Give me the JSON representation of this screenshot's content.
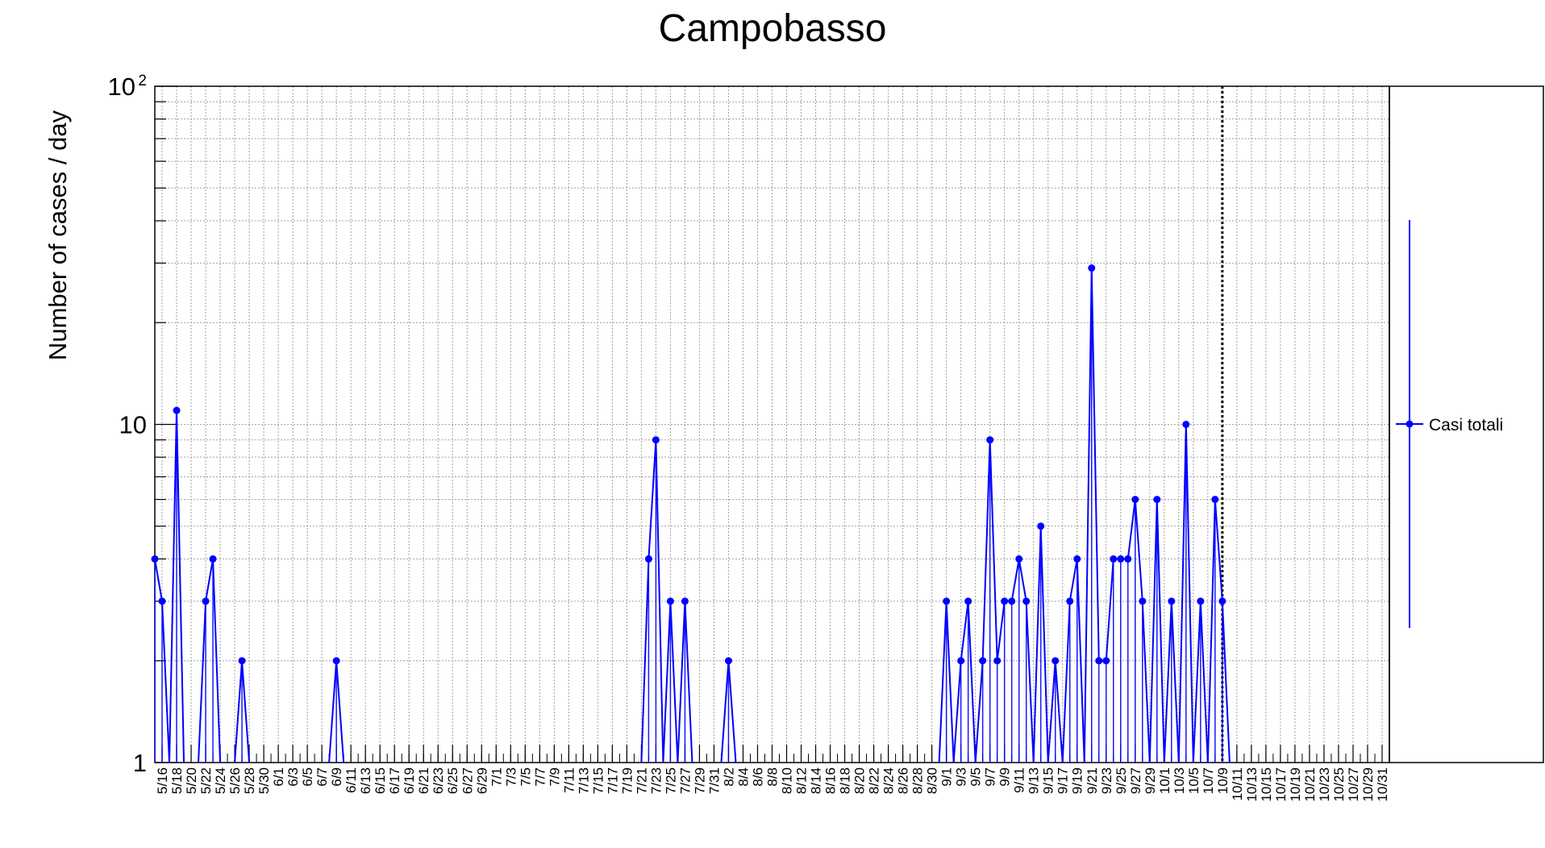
{
  "chart_data": {
    "type": "line",
    "title": "Campobasso",
    "xlabel": "",
    "ylabel": "Number of cases / day",
    "yscale": "log",
    "ylim": [
      1,
      100
    ],
    "yticks": [
      {
        "value": 1,
        "label": "1"
      },
      {
        "value": 10,
        "label": "10"
      },
      {
        "value": 100,
        "label": "10",
        "exp": "2"
      }
    ],
    "xrange": [
      "2020-05-15",
      "2020-11-01"
    ],
    "x_tick_labels": [
      "5/16",
      "5/18",
      "5/20",
      "5/22",
      "5/24",
      "5/26",
      "5/28",
      "5/30",
      "6/1",
      "6/3",
      "6/5",
      "6/7",
      "6/9",
      "6/11",
      "6/13",
      "6/15",
      "6/17",
      "6/19",
      "6/21",
      "6/23",
      "6/25",
      "6/27",
      "6/29",
      "7/1",
      "7/3",
      "7/5",
      "7/7",
      "7/9",
      "7/11",
      "7/13",
      "7/15",
      "7/17",
      "7/19",
      "7/21",
      "7/23",
      "7/25",
      "7/27",
      "7/29",
      "7/31",
      "8/2",
      "8/4",
      "8/6",
      "8/8",
      "8/10",
      "8/12",
      "8/14",
      "8/16",
      "8/18",
      "8/20",
      "8/22",
      "8/24",
      "8/26",
      "8/28",
      "8/30",
      "9/1",
      "9/3",
      "9/5",
      "9/7",
      "9/9",
      "9/11",
      "9/13",
      "9/15",
      "9/17",
      "9/19",
      "9/21",
      "9/23",
      "9/25",
      "9/27",
      "9/29",
      "10/1",
      "10/3",
      "10/5",
      "10/7",
      "10/9",
      "10/11",
      "10/13",
      "10/15",
      "10/17",
      "10/19",
      "10/21",
      "10/23",
      "10/25",
      "10/27",
      "10/29",
      "10/31"
    ],
    "vline_date": "2020-10-09",
    "grid": true,
    "legend_position": "right",
    "series": [
      {
        "name": "Casi totali",
        "color": "#0000ff",
        "points": [
          [
            "2020-05-15",
            4
          ],
          [
            "2020-05-16",
            3
          ],
          [
            "2020-05-17",
            0
          ],
          [
            "2020-05-18",
            11
          ],
          [
            "2020-05-19",
            0
          ],
          [
            "2020-05-20",
            0
          ],
          [
            "2020-05-21",
            0
          ],
          [
            "2020-05-22",
            3
          ],
          [
            "2020-05-23",
            4
          ],
          [
            "2020-05-24",
            0
          ],
          [
            "2020-05-25",
            0
          ],
          [
            "2020-05-26",
            0
          ],
          [
            "2020-05-27",
            2
          ],
          [
            "2020-05-28",
            0
          ],
          [
            "2020-06-08",
            0
          ],
          [
            "2020-06-09",
            2
          ],
          [
            "2020-06-10",
            0
          ],
          [
            "2020-07-21",
            0
          ],
          [
            "2020-07-22",
            4
          ],
          [
            "2020-07-23",
            9
          ],
          [
            "2020-07-24",
            0
          ],
          [
            "2020-07-25",
            3
          ],
          [
            "2020-07-26",
            0
          ],
          [
            "2020-07-27",
            3
          ],
          [
            "2020-07-28",
            0
          ],
          [
            "2020-08-01",
            0
          ],
          [
            "2020-08-02",
            2
          ],
          [
            "2020-08-03",
            0
          ],
          [
            "2020-08-31",
            0
          ],
          [
            "2020-09-01",
            3
          ],
          [
            "2020-09-02",
            0
          ],
          [
            "2020-09-03",
            2
          ],
          [
            "2020-09-04",
            3
          ],
          [
            "2020-09-05",
            0
          ],
          [
            "2020-09-06",
            2
          ],
          [
            "2020-09-07",
            9
          ],
          [
            "2020-09-08",
            2
          ],
          [
            "2020-09-09",
            3
          ],
          [
            "2020-09-10",
            3
          ],
          [
            "2020-09-11",
            4
          ],
          [
            "2020-09-12",
            3
          ],
          [
            "2020-09-13",
            0
          ],
          [
            "2020-09-14",
            5
          ],
          [
            "2020-09-15",
            0
          ],
          [
            "2020-09-16",
            2
          ],
          [
            "2020-09-17",
            0
          ],
          [
            "2020-09-18",
            3
          ],
          [
            "2020-09-19",
            4
          ],
          [
            "2020-09-20",
            0
          ],
          [
            "2020-09-21",
            29
          ],
          [
            "2020-09-22",
            2
          ],
          [
            "2020-09-23",
            2
          ],
          [
            "2020-09-24",
            4
          ],
          [
            "2020-09-25",
            4
          ],
          [
            "2020-09-26",
            4
          ],
          [
            "2020-09-27",
            6
          ],
          [
            "2020-09-28",
            3
          ],
          [
            "2020-09-29",
            0
          ],
          [
            "2020-09-30",
            6
          ],
          [
            "2020-10-01",
            0
          ],
          [
            "2020-10-02",
            3
          ],
          [
            "2020-10-03",
            0
          ],
          [
            "2020-10-04",
            10
          ],
          [
            "2020-10-05",
            0
          ],
          [
            "2020-10-06",
            3
          ],
          [
            "2020-10-07",
            0
          ],
          [
            "2020-10-08",
            6
          ],
          [
            "2020-10-09",
            3
          ],
          [
            "2020-10-10",
            0
          ]
        ]
      }
    ]
  }
}
